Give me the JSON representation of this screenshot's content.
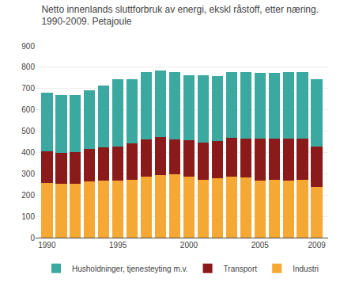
{
  "chart_data": {
    "type": "bar",
    "stacked": true,
    "title": "Netto innenlands sluttforbruk av energi, ekskl råstoff, etter næring.\n1990-2009. Petajoule",
    "x": [
      1990,
      1991,
      1992,
      1993,
      1994,
      1995,
      1996,
      1997,
      1998,
      1999,
      2000,
      2001,
      2002,
      2003,
      2004,
      2005,
      2006,
      2007,
      2008,
      2009
    ],
    "series": [
      {
        "name": "Industri",
        "color": "#F5A833",
        "values": [
          258,
          252,
          253,
          265,
          267,
          268,
          270,
          288,
          293,
          298,
          286,
          270,
          278,
          288,
          283,
          268,
          270,
          268,
          270,
          237
        ]
      },
      {
        "name": "Transport",
        "color": "#8B1A1A",
        "values": [
          148,
          147,
          147,
          153,
          157,
          160,
          172,
          175,
          178,
          165,
          171,
          176,
          174,
          181,
          183,
          196,
          195,
          196,
          196,
          192
        ]
      },
      {
        "name": "Husholdninger, tjenesteyting m.v.",
        "color": "#3CA9A0",
        "values": [
          275,
          272,
          270,
          275,
          291,
          316,
          300,
          315,
          315,
          315,
          307,
          317,
          305,
          308,
          310,
          311,
          310,
          312,
          312,
          315
        ]
      }
    ],
    "xlim": [
      1989.2,
      2009.8
    ],
    "xticks": [
      1990,
      1995,
      2000,
      2005,
      2009
    ],
    "ylim": [
      0,
      900
    ],
    "yticks": [
      0,
      100,
      200,
      300,
      400,
      500,
      600,
      700,
      800,
      900
    ],
    "grid": true,
    "legend": "bottom"
  }
}
